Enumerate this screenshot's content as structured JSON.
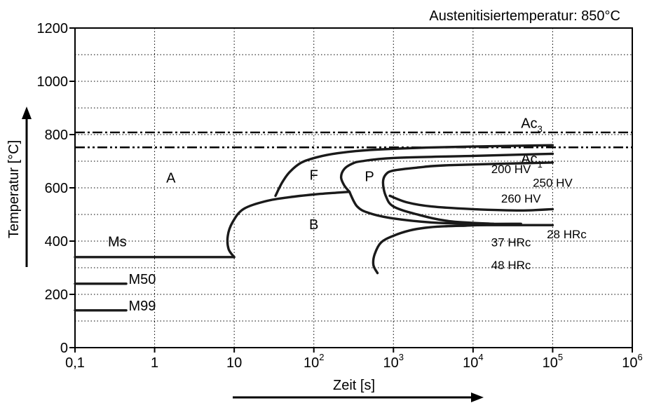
{
  "chart_data": {
    "type": "line",
    "title": "Austenitisiertemperatur: 850°C",
    "xlabel": "Zeit [s]",
    "ylabel": "Temperatur [°C]",
    "x_scale": "log",
    "xlim": [
      0.1,
      1000000
    ],
    "ylim": [
      0,
      1200
    ],
    "grid": true,
    "x_ticks": [
      {
        "value": 0.1,
        "base": "0,1",
        "exp": ""
      },
      {
        "value": 1,
        "base": "1",
        "exp": ""
      },
      {
        "value": 10,
        "base": "10",
        "exp": ""
      },
      {
        "value": 100,
        "base": "10",
        "exp": "2"
      },
      {
        "value": 1000,
        "base": "10",
        "exp": "3"
      },
      {
        "value": 10000,
        "base": "10",
        "exp": "4"
      },
      {
        "value": 100000,
        "base": "10",
        "exp": "5"
      },
      {
        "value": 1000000,
        "base": "10",
        "exp": "6"
      }
    ],
    "y_ticks": [
      {
        "value": 0,
        "label": "0"
      },
      {
        "value": 200,
        "label": "200"
      },
      {
        "value": 400,
        "label": "400"
      },
      {
        "value": 600,
        "label": "600"
      },
      {
        "value": 800,
        "label": "800"
      },
      {
        "value": 1000,
        "label": "1000"
      },
      {
        "value": 1200,
        "label": "1200"
      }
    ],
    "reference_lines": [
      {
        "name": "Ac3",
        "base": "Ac",
        "sub": "3",
        "y": 808,
        "style": "dash-dot",
        "label_x": 40000,
        "label_y": 825
      },
      {
        "name": "Ac1",
        "base": "Ac",
        "sub": "1",
        "y": 752,
        "style": "dash-dot-dot",
        "label_x": 40000,
        "label_y": 692
      }
    ],
    "series": [
      {
        "x": [
          0.1,
          10
        ],
        "y": [
          340,
          340
        ]
      },
      {
        "x": [
          0.1,
          0.44
        ],
        "y": [
          240,
          240
        ]
      },
      {
        "x": [
          0.1,
          0.44
        ],
        "y": [
          140,
          140
        ]
      },
      {
        "x": [
          10,
          8.5,
          8.3,
          9.5,
          13,
          25,
          50,
          100,
          200,
          280
        ],
        "y": [
          340,
          370,
          420,
          470,
          520,
          550,
          565,
          575,
          582,
          585
        ]
      },
      {
        "x": [
          33,
          40,
          50,
          70,
          110,
          200,
          500,
          2000,
          10000,
          100000
        ],
        "y": [
          570,
          620,
          660,
          695,
          715,
          730,
          742,
          750,
          755,
          760
        ]
      },
      {
        "x": [
          280,
          240,
          220,
          240,
          300,
          400,
          1000,
          10000,
          100000
        ],
        "y": [
          585,
          610,
          640,
          670,
          690,
          700,
          712,
          720,
          728
        ]
      },
      {
        "x": [
          280,
          350,
          500,
          1000,
          3000,
          10000,
          40000
        ],
        "y": [
          585,
          530,
          505,
          485,
          470,
          465,
          465
        ]
      },
      {
        "x": [
          18000,
          5000,
          2000,
          1000,
          800,
          740,
          800,
          1000,
          2000,
          5000,
          100000
        ],
        "y": [
          465,
          475,
          500,
          530,
          570,
          620,
          650,
          665,
          676,
          685,
          695
        ]
      },
      {
        "x": [
          900,
          1500,
          3000,
          10000,
          40000,
          100000
        ],
        "y": [
          570,
          545,
          530,
          520,
          515,
          520
        ]
      },
      {
        "x": [
          630,
          560,
          580,
          700,
          1000,
          1600,
          2500,
          4000,
          8000,
          15000,
          100000
        ],
        "y": [
          280,
          310,
          350,
          395,
          420,
          440,
          450,
          455,
          458,
          460,
          460
        ]
      }
    ],
    "annotations": [
      {
        "text": "A",
        "x": 1.6,
        "y": 620
      },
      {
        "text": "F",
        "x": 100,
        "y": 630
      },
      {
        "text": "P",
        "x": 500,
        "y": 625
      },
      {
        "text": "B",
        "x": 100,
        "y": 445
      },
      {
        "text": "Ms",
        "x": 0.34,
        "y": 380
      },
      {
        "text": "M50",
        "x": 0.7,
        "y": 240
      },
      {
        "text": "M99",
        "x": 0.7,
        "y": 140
      }
    ],
    "hardness_labels": [
      {
        "text": "200 HV",
        "x": 30000,
        "y": 655
      },
      {
        "text": "250 HV",
        "x": 100000,
        "y": 604
      },
      {
        "text": "260 HV",
        "x": 40000,
        "y": 545
      },
      {
        "text": "28 HRc",
        "x": 150000,
        "y": 410
      },
      {
        "text": "37 HRc",
        "x": 30000,
        "y": 380
      },
      {
        "text": "48 HRc",
        "x": 30000,
        "y": 295
      }
    ]
  }
}
